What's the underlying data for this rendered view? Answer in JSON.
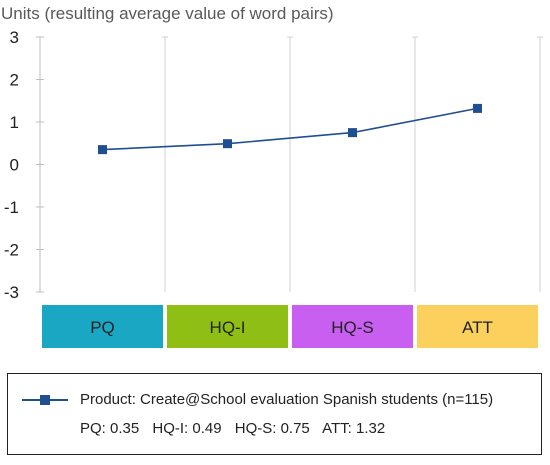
{
  "chart_data": {
    "type": "line",
    "title": "Units (resulting average value of word pairs)",
    "categories": [
      "PQ",
      "HQ-I",
      "HQ-S",
      "ATT"
    ],
    "y_ticks": [
      "-3",
      "-2",
      "-1",
      "0",
      "1",
      "2",
      "3"
    ],
    "ylim": [
      -3,
      3
    ],
    "grid": "vertical",
    "legend_position": "bottom",
    "series": [
      {
        "name": "Product: Create@School evaluation Spanish students (n=115)",
        "values": [
          0.35,
          0.49,
          0.75,
          1.32
        ],
        "color": "#1f4e91"
      }
    ],
    "category_boxes": [
      {
        "label": "PQ",
        "color": "#1aa7c4"
      },
      {
        "label": "HQ-I",
        "color": "#8fbf14"
      },
      {
        "label": "HQ-S",
        "color": "#c85ff0"
      },
      {
        "label": "ATT",
        "color": "#fcd05c"
      }
    ],
    "legend_values": [
      "PQ: 0.35",
      "HQ-I: 0.49",
      "HQ-S: 0.75",
      "ATT: 1.32"
    ]
  }
}
